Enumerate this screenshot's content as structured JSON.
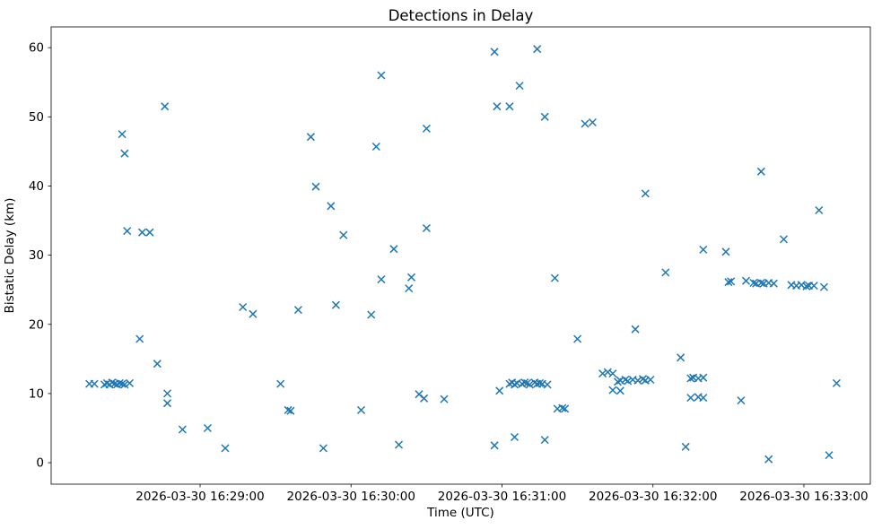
{
  "chart_data": {
    "type": "scatter",
    "title": "Detections in Delay",
    "xlabel": "Time (UTC)",
    "ylabel": "Bistatic Delay (km)",
    "date": "2026-03-30",
    "marker": "x",
    "marker_color": "#1f77b4",
    "grid": false,
    "legend": "none",
    "x_tick_labels": [
      "2026-03-30 16:29:00",
      "2026-03-30 16:30:00",
      "2026-03-30 16:31:00",
      "2026-03-30 16:32:00",
      "2026-03-30 16:33:00"
    ],
    "y_ticks": [
      0,
      10,
      20,
      30,
      40,
      50,
      60
    ],
    "x_range_seconds_after_16_28_00": [
      0.8,
      326.4
    ],
    "y_range": [
      -3.1,
      63.0
    ],
    "points": [
      [
        "16:28:16",
        11.4
      ],
      [
        "16:28:18",
        11.4
      ],
      [
        "16:28:22",
        11.3
      ],
      [
        "16:28:23",
        11.5
      ],
      [
        "16:28:24",
        11.3
      ],
      [
        "16:28:25",
        11.6
      ],
      [
        "16:28:26",
        11.4
      ],
      [
        "16:28:27",
        11.3
      ],
      [
        "16:28:28",
        11.5
      ],
      [
        "16:28:29",
        11.4
      ],
      [
        "16:28:30",
        11.3
      ],
      [
        "16:28:32",
        11.5
      ],
      [
        "16:28:29",
        47.5
      ],
      [
        "16:28:30",
        44.7
      ],
      [
        "16:28:31",
        33.5
      ],
      [
        "16:28:37",
        33.3
      ],
      [
        "16:28:40",
        33.3
      ],
      [
        "16:28:36",
        17.9
      ],
      [
        "16:28:43",
        14.3
      ],
      [
        "16:28:46",
        51.5
      ],
      [
        "16:28:47",
        10.0
      ],
      [
        "16:28:47",
        8.6
      ],
      [
        "16:28:53",
        4.8
      ],
      [
        "16:29:03",
        5.0
      ],
      [
        "16:29:10",
        2.1
      ],
      [
        "16:29:17",
        22.5
      ],
      [
        "16:29:21",
        21.5
      ],
      [
        "16:29:32",
        11.4
      ],
      [
        "16:29:35",
        7.6
      ],
      [
        "16:29:36",
        7.5
      ],
      [
        "16:29:39",
        22.1
      ],
      [
        "16:29:44",
        47.1
      ],
      [
        "16:29:46",
        39.9
      ],
      [
        "16:29:49",
        2.1
      ],
      [
        "16:29:52",
        37.1
      ],
      [
        "16:29:54",
        22.8
      ],
      [
        "16:29:57",
        32.9
      ],
      [
        "16:30:04",
        7.6
      ],
      [
        "16:30:08",
        21.4
      ],
      [
        "16:30:10",
        45.7
      ],
      [
        "16:30:12",
        56.0
      ],
      [
        "16:30:12",
        26.5
      ],
      [
        "16:30:17",
        30.9
      ],
      [
        "16:30:19",
        2.6
      ],
      [
        "16:30:23",
        25.2
      ],
      [
        "16:30:24",
        26.8
      ],
      [
        "16:30:27",
        9.9
      ],
      [
        "16:30:29",
        9.3
      ],
      [
        "16:30:30",
        48.3
      ],
      [
        "16:30:30",
        33.9
      ],
      [
        "16:30:37",
        9.2
      ],
      [
        "16:30:57",
        59.4
      ],
      [
        "16:30:57",
        2.5
      ],
      [
        "16:30:58",
        51.5
      ],
      [
        "16:30:59",
        10.4
      ],
      [
        "16:31:03",
        51.5
      ],
      [
        "16:31:03",
        11.4
      ],
      [
        "16:31:04",
        11.6
      ],
      [
        "16:31:05",
        11.3
      ],
      [
        "16:31:06",
        11.5
      ],
      [
        "16:31:08",
        11.4
      ],
      [
        "16:31:09",
        11.6
      ],
      [
        "16:31:10",
        11.5
      ],
      [
        "16:31:11",
        11.3
      ],
      [
        "16:31:13",
        11.6
      ],
      [
        "16:31:14",
        11.4
      ],
      [
        "16:31:15",
        11.5
      ],
      [
        "16:31:16",
        11.4
      ],
      [
        "16:31:18",
        11.3
      ],
      [
        "16:31:05",
        3.7
      ],
      [
        "16:31:07",
        54.5
      ],
      [
        "16:31:14",
        59.8
      ],
      [
        "16:31:17",
        50.0
      ],
      [
        "16:31:17",
        3.3
      ],
      [
        "16:31:21",
        26.7
      ],
      [
        "16:31:22",
        7.8
      ],
      [
        "16:31:24",
        7.9
      ],
      [
        "16:31:25",
        7.8
      ],
      [
        "16:31:30",
        17.9
      ],
      [
        "16:31:33",
        49.0
      ],
      [
        "16:31:36",
        49.2
      ],
      [
        "16:31:40",
        12.9
      ],
      [
        "16:31:42",
        13.1
      ],
      [
        "16:31:44",
        12.9
      ],
      [
        "16:31:44",
        10.5
      ],
      [
        "16:31:47",
        10.4
      ],
      [
        "16:31:46",
        11.7
      ],
      [
        "16:31:47",
        11.9
      ],
      [
        "16:31:49",
        12.0
      ],
      [
        "16:31:50",
        11.8
      ],
      [
        "16:31:52",
        12.0
      ],
      [
        "16:31:54",
        11.9
      ],
      [
        "16:31:56",
        12.1
      ],
      [
        "16:31:57",
        11.9
      ],
      [
        "16:31:59",
        12.0
      ],
      [
        "16:31:53",
        19.3
      ],
      [
        "16:31:57",
        38.9
      ],
      [
        "16:32:05",
        27.5
      ],
      [
        "16:32:11",
        15.2
      ],
      [
        "16:32:13",
        2.3
      ],
      [
        "16:32:15",
        12.2
      ],
      [
        "16:32:16",
        12.3
      ],
      [
        "16:32:18",
        12.2
      ],
      [
        "16:32:20",
        12.3
      ],
      [
        "16:32:15",
        9.4
      ],
      [
        "16:32:18",
        9.5
      ],
      [
        "16:32:20",
        9.4
      ],
      [
        "16:32:20",
        30.8
      ],
      [
        "16:32:29",
        30.5
      ],
      [
        "16:32:30",
        26.1
      ],
      [
        "16:32:31",
        26.2
      ],
      [
        "16:32:35",
        9.0
      ],
      [
        "16:32:37",
        26.3
      ],
      [
        "16:32:40",
        26.0
      ],
      [
        "16:32:41",
        25.9
      ],
      [
        "16:32:43",
        26.0
      ],
      [
        "16:32:44",
        25.9
      ],
      [
        "16:32:46",
        26.0
      ],
      [
        "16:32:48",
        25.9
      ],
      [
        "16:32:43",
        42.1
      ],
      [
        "16:32:46",
        0.5
      ],
      [
        "16:32:52",
        32.3
      ],
      [
        "16:32:55",
        25.7
      ],
      [
        "16:32:57",
        25.6
      ],
      [
        "16:32:59",
        25.7
      ],
      [
        "16:33:01",
        25.5
      ],
      [
        "16:33:02",
        25.6
      ],
      [
        "16:33:04",
        25.6
      ],
      [
        "16:33:08",
        25.4
      ],
      [
        "16:33:06",
        36.5
      ],
      [
        "16:33:10",
        1.1
      ],
      [
        "16:33:13",
        11.5
      ]
    ]
  }
}
